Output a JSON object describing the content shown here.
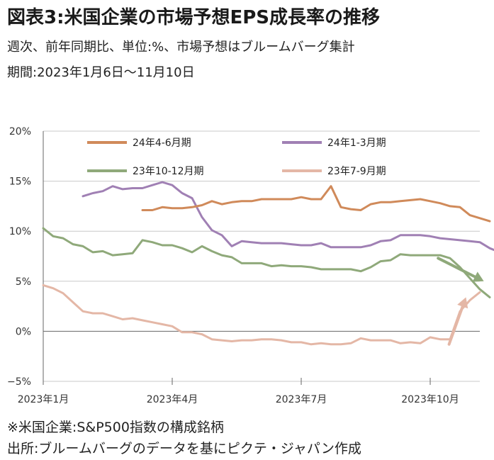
{
  "header": {
    "title": "図表3:米国企業の市場予想EPS成長率の推移",
    "subtitle1": "週次、前年同期比、単位:%、市場予想はブルームバーグ集計",
    "subtitle2": "期間:2023年1月6日〜11月10日"
  },
  "footer": {
    "note1": "※米国企業:S&P500指数の構成銘柄",
    "note2": "出所:ブルームバーグのデータを基にピクテ・ジャパン作成"
  },
  "chart_data": {
    "type": "line",
    "title": "図表3:米国企業の市場予想EPS成長率の推移",
    "xlabel": "",
    "ylabel": "",
    "ylim": [
      -5,
      20
    ],
    "yticks": [
      -5,
      0,
      5,
      10,
      15,
      20
    ],
    "ytick_labels": [
      "−5%",
      "0%",
      "5%",
      "10%",
      "15%",
      "20%"
    ],
    "x_weeks": 45,
    "x_start": "2023-01-06",
    "x_end": "2023-11-10",
    "xticks": [
      {
        "week": 0,
        "label": "2023年1月"
      },
      {
        "week": 13,
        "label": "2023年4月"
      },
      {
        "week": 26,
        "label": "2023年7月"
      },
      {
        "week": 39,
        "label": "2023年10月"
      }
    ],
    "grid": "horizontal",
    "legend_position": "top",
    "series": [
      {
        "name": "24年4-6月期",
        "color": "#d08a5a",
        "start_week": 10,
        "values": [
          12.1,
          12.1,
          12.4,
          12.3,
          12.3,
          12.4,
          12.6,
          13.0,
          12.7,
          12.9,
          13.0,
          13.0,
          13.2,
          13.2,
          13.2,
          13.2,
          13.4,
          13.2,
          13.2,
          14.5,
          12.4,
          12.2,
          12.1,
          12.7,
          12.9,
          12.9,
          13.0,
          13.1,
          13.2,
          13.0,
          12.8,
          12.5,
          12.4,
          11.6,
          11.3,
          11.0
        ]
      },
      {
        "name": "24年1-3月期",
        "color": "#a080b4",
        "start_week": 4,
        "values": [
          13.5,
          13.8,
          14.0,
          14.5,
          14.2,
          14.3,
          14.3,
          14.6,
          14.9,
          14.6,
          13.8,
          13.3,
          11.4,
          10.1,
          9.6,
          8.5,
          9.0,
          8.9,
          8.8,
          8.8,
          8.8,
          8.7,
          8.6,
          8.6,
          8.8,
          8.4,
          8.4,
          8.4,
          8.4,
          8.6,
          9.0,
          9.1,
          9.6,
          9.6,
          9.6,
          9.5,
          9.3,
          9.2,
          9.1,
          9.0,
          8.9,
          8.3,
          7.9,
          7.6
        ]
      },
      {
        "name": "23年10-12月期",
        "color": "#8fa97a",
        "start_week": 0,
        "values": [
          10.3,
          9.5,
          9.3,
          8.7,
          8.5,
          7.9,
          8.0,
          7.6,
          7.7,
          7.8,
          9.1,
          8.9,
          8.6,
          8.6,
          8.3,
          7.9,
          8.5,
          8.0,
          7.6,
          7.4,
          6.8,
          6.8,
          6.8,
          6.5,
          6.6,
          6.5,
          6.5,
          6.4,
          6.2,
          6.2,
          6.2,
          6.2,
          6.0,
          6.4,
          7.0,
          7.1,
          7.7,
          7.6,
          7.6,
          7.6,
          7.6,
          7.3,
          6.4,
          5.3,
          4.2,
          3.4
        ]
      },
      {
        "name": "23年7-9月期",
        "color": "#e4b7a6",
        "start_week": 0,
        "values": [
          4.6,
          4.3,
          3.8,
          2.9,
          2.0,
          1.8,
          1.8,
          1.5,
          1.2,
          1.3,
          1.1,
          0.9,
          0.7,
          0.5,
          -0.1,
          -0.1,
          -0.3,
          -0.8,
          -0.9,
          -1.0,
          -0.9,
          -0.9,
          -0.8,
          -0.8,
          -0.9,
          -1.1,
          -1.1,
          -1.3,
          -1.2,
          -1.3,
          -1.3,
          -1.2,
          -0.7,
          -0.9,
          -0.9,
          -0.9,
          -1.2,
          -1.1,
          -1.2,
          -0.6,
          -0.8,
          -0.8,
          2.0,
          3.1,
          3.9
        ]
      }
    ],
    "annotations": [
      {
        "type": "arrow",
        "color": "#8fa97a",
        "from": {
          "week": 39.8,
          "value": 7.3
        },
        "to": {
          "week": 44.4,
          "value": 5.0
        }
      },
      {
        "type": "arrow",
        "color": "#e4b7a6",
        "from": {
          "week": 40.9,
          "value": -1.3
        },
        "to": {
          "week": 42.6,
          "value": 3.4
        }
      }
    ]
  }
}
